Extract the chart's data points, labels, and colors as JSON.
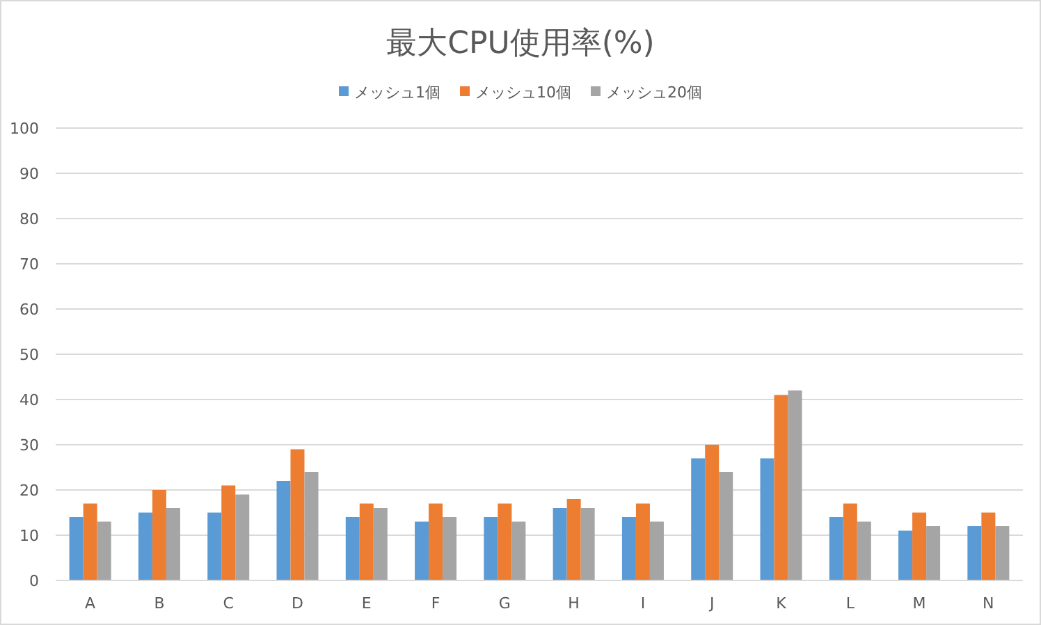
{
  "chart_data": {
    "type": "bar",
    "title": "最大CPU使用率(%)",
    "categories": [
      "A",
      "B",
      "C",
      "D",
      "E",
      "F",
      "G",
      "H",
      "I",
      "J",
      "K",
      "L",
      "M",
      "N"
    ],
    "series": [
      {
        "name": "メッシュ1個",
        "color": "#5b9bd5",
        "values": [
          14,
          15,
          15,
          22,
          14,
          13,
          14,
          16,
          14,
          27,
          27,
          14,
          11,
          12
        ]
      },
      {
        "name": "メッシュ10個",
        "color": "#ed7d31",
        "values": [
          17,
          20,
          21,
          29,
          17,
          17,
          17,
          18,
          17,
          30,
          41,
          17,
          15,
          15
        ]
      },
      {
        "name": "メッシュ20個",
        "color": "#a5a5a5",
        "values": [
          13,
          16,
          19,
          24,
          16,
          14,
          13,
          16,
          13,
          24,
          42,
          13,
          12,
          12
        ]
      }
    ],
    "ylim": [
      0,
      100
    ],
    "yticks": [
      0,
      10,
      20,
      30,
      40,
      50,
      60,
      70,
      80,
      90,
      100
    ],
    "grid": "y",
    "legend": "top"
  }
}
